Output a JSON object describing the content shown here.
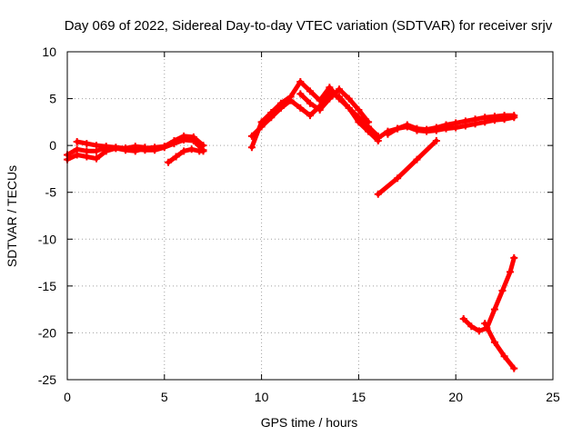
{
  "chart_data": {
    "type": "line",
    "title": "Day 069 of 2022, Sidereal Day-to-day VTEC variation (SDTVAR) for receiver srjv",
    "xlabel": "GPS time / hours",
    "ylabel": "SDTVAR / TECUs",
    "xlim": [
      0,
      25
    ],
    "ylim": [
      -25,
      10
    ],
    "xticks": [
      0,
      5,
      10,
      15,
      20,
      25
    ],
    "yticks": [
      -25,
      -20,
      -15,
      -10,
      -5,
      0,
      5,
      10
    ],
    "grid": true,
    "colors": {
      "series": "#ff0000"
    },
    "series": [
      {
        "x": [
          0,
          0.5,
          1.0,
          1.5,
          2.0,
          2.5,
          3.0,
          3.5,
          4.0,
          4.5,
          5.0,
          5.5,
          6.0,
          6.5,
          7.0
        ],
        "y": [
          -1.5,
          -1.0,
          -1.2,
          -1.4,
          -0.6,
          -0.3,
          -0.3,
          -0.4,
          -0.5,
          -0.5,
          -0.2,
          0.2,
          0.6,
          0.5,
          -0.5
        ]
      },
      {
        "x": [
          0,
          0.5,
          1.0,
          1.5,
          2.0,
          2.5,
          3.0,
          3.5,
          4.0,
          4.5,
          5.0,
          5.5,
          6.0,
          6.5,
          7.0
        ],
        "y": [
          -1.0,
          -0.4,
          -0.6,
          -0.6,
          -0.2,
          -0.3,
          -0.5,
          -0.6,
          -0.3,
          -0.2,
          -0.1,
          0.5,
          1.0,
          0.9,
          0.0
        ]
      },
      {
        "x": [
          0.5,
          1.0,
          1.5,
          2.0,
          2.5,
          3.0,
          3.5,
          4.0
        ],
        "y": [
          0.4,
          0.2,
          0.0,
          -0.1,
          -0.2,
          -0.3,
          -0.1,
          -0.2
        ]
      },
      {
        "x": [
          5.2,
          5.6,
          6.0,
          6.4,
          6.8,
          7.0
        ],
        "y": [
          -1.8,
          -1.2,
          -0.6,
          -0.4,
          -0.6,
          -0.6
        ]
      },
      {
        "x": [
          9.5,
          10.0,
          10.5,
          11.0,
          11.5,
          12.0,
          12.5,
          13.0,
          13.5,
          14.0,
          14.5,
          15.0,
          15.5,
          16.0
        ],
        "y": [
          -0.2,
          2.5,
          3.5,
          4.5,
          5.2,
          6.8,
          5.8,
          4.8,
          6.2,
          5.0,
          4.0,
          2.5,
          1.5,
          0.5
        ]
      },
      {
        "x": [
          9.5,
          10.0,
          10.5,
          11.0,
          11.5,
          12.0,
          12.5,
          13.0,
          13.5,
          14.0,
          14.5,
          15.0,
          15.5,
          16.0
        ],
        "y": [
          1.0,
          2.0,
          3.0,
          4.0,
          4.8,
          4.0,
          3.2,
          4.2,
          5.5,
          5.2,
          4.0,
          3.0,
          2.0,
          1.0
        ]
      },
      {
        "x": [
          12.0,
          12.5,
          13.0,
          13.5,
          14.0,
          14.5,
          15.0,
          15.5
        ],
        "y": [
          5.5,
          4.5,
          3.8,
          5.0,
          6.0,
          5.0,
          3.8,
          2.5
        ]
      },
      {
        "x": [
          16.0,
          16.5,
          17.0,
          17.5,
          18.0,
          18.5,
          19.0,
          19.5,
          20.0,
          20.5,
          21.0,
          21.5,
          22.0,
          22.5,
          23.0
        ],
        "y": [
          0.8,
          1.5,
          1.8,
          2.0,
          1.6,
          1.5,
          1.6,
          1.8,
          1.9,
          2.1,
          2.3,
          2.5,
          2.7,
          2.8,
          3.0
        ]
      },
      {
        "x": [
          16.5,
          17.0,
          17.5,
          18.0,
          18.5,
          19.0,
          19.5,
          20.0,
          20.5,
          21.0,
          21.5,
          22.0,
          22.5,
          23.0
        ],
        "y": [
          1.2,
          1.8,
          2.2,
          1.8,
          1.7,
          1.9,
          2.2,
          2.4,
          2.6,
          2.8,
          3.0,
          3.1,
          3.2,
          3.2
        ]
      },
      {
        "x": [
          16.0,
          17.0,
          18.0,
          19.0
        ],
        "y": [
          -5.2,
          -3.5,
          -1.5,
          0.5
        ]
      },
      {
        "x": [
          20.4,
          20.8,
          21.2,
          21.6,
          22.0,
          22.4,
          22.8,
          23.0
        ],
        "y": [
          -18.5,
          -19.3,
          -19.8,
          -19.5,
          -17.5,
          -15.5,
          -13.5,
          -12.0
        ]
      },
      {
        "x": [
          21.5,
          22.0,
          22.5,
          23.0
        ],
        "y": [
          -19.0,
          -21.0,
          -22.5,
          -23.8
        ]
      }
    ]
  }
}
